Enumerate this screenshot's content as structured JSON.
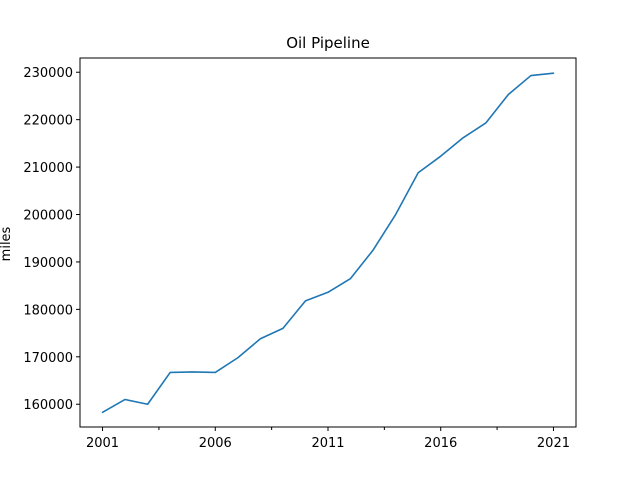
{
  "chart_data": {
    "type": "line",
    "title": "Oil Pipeline",
    "xlabel": "",
    "ylabel": "miles",
    "xlim": [
      2000.0,
      2022.0
    ],
    "ylim": [
      155200,
      233000
    ],
    "x_ticks": [
      2001,
      2006,
      2011,
      2016,
      2021
    ],
    "x_minor_ticks": [
      2003.5,
      2008.5,
      2013.5,
      2018.5
    ],
    "y_ticks": [
      160000,
      170000,
      180000,
      190000,
      200000,
      210000,
      220000,
      230000
    ],
    "grid": false,
    "series": [
      {
        "color": "#1f77b4",
        "x": [
          2001,
          2002,
          2003,
          2004,
          2005,
          2006,
          2007,
          2008,
          2009,
          2010,
          2011,
          2012,
          2013,
          2014,
          2015,
          2016,
          2017,
          2018,
          2019,
          2020,
          2021
        ],
        "y": [
          158300,
          161000,
          160000,
          166700,
          166800,
          166700,
          169800,
          173800,
          176000,
          181800,
          183600,
          186500,
          192500,
          200000,
          208800,
          212300,
          216200,
          219300,
          225300,
          229300,
          229800
        ]
      }
    ]
  }
}
